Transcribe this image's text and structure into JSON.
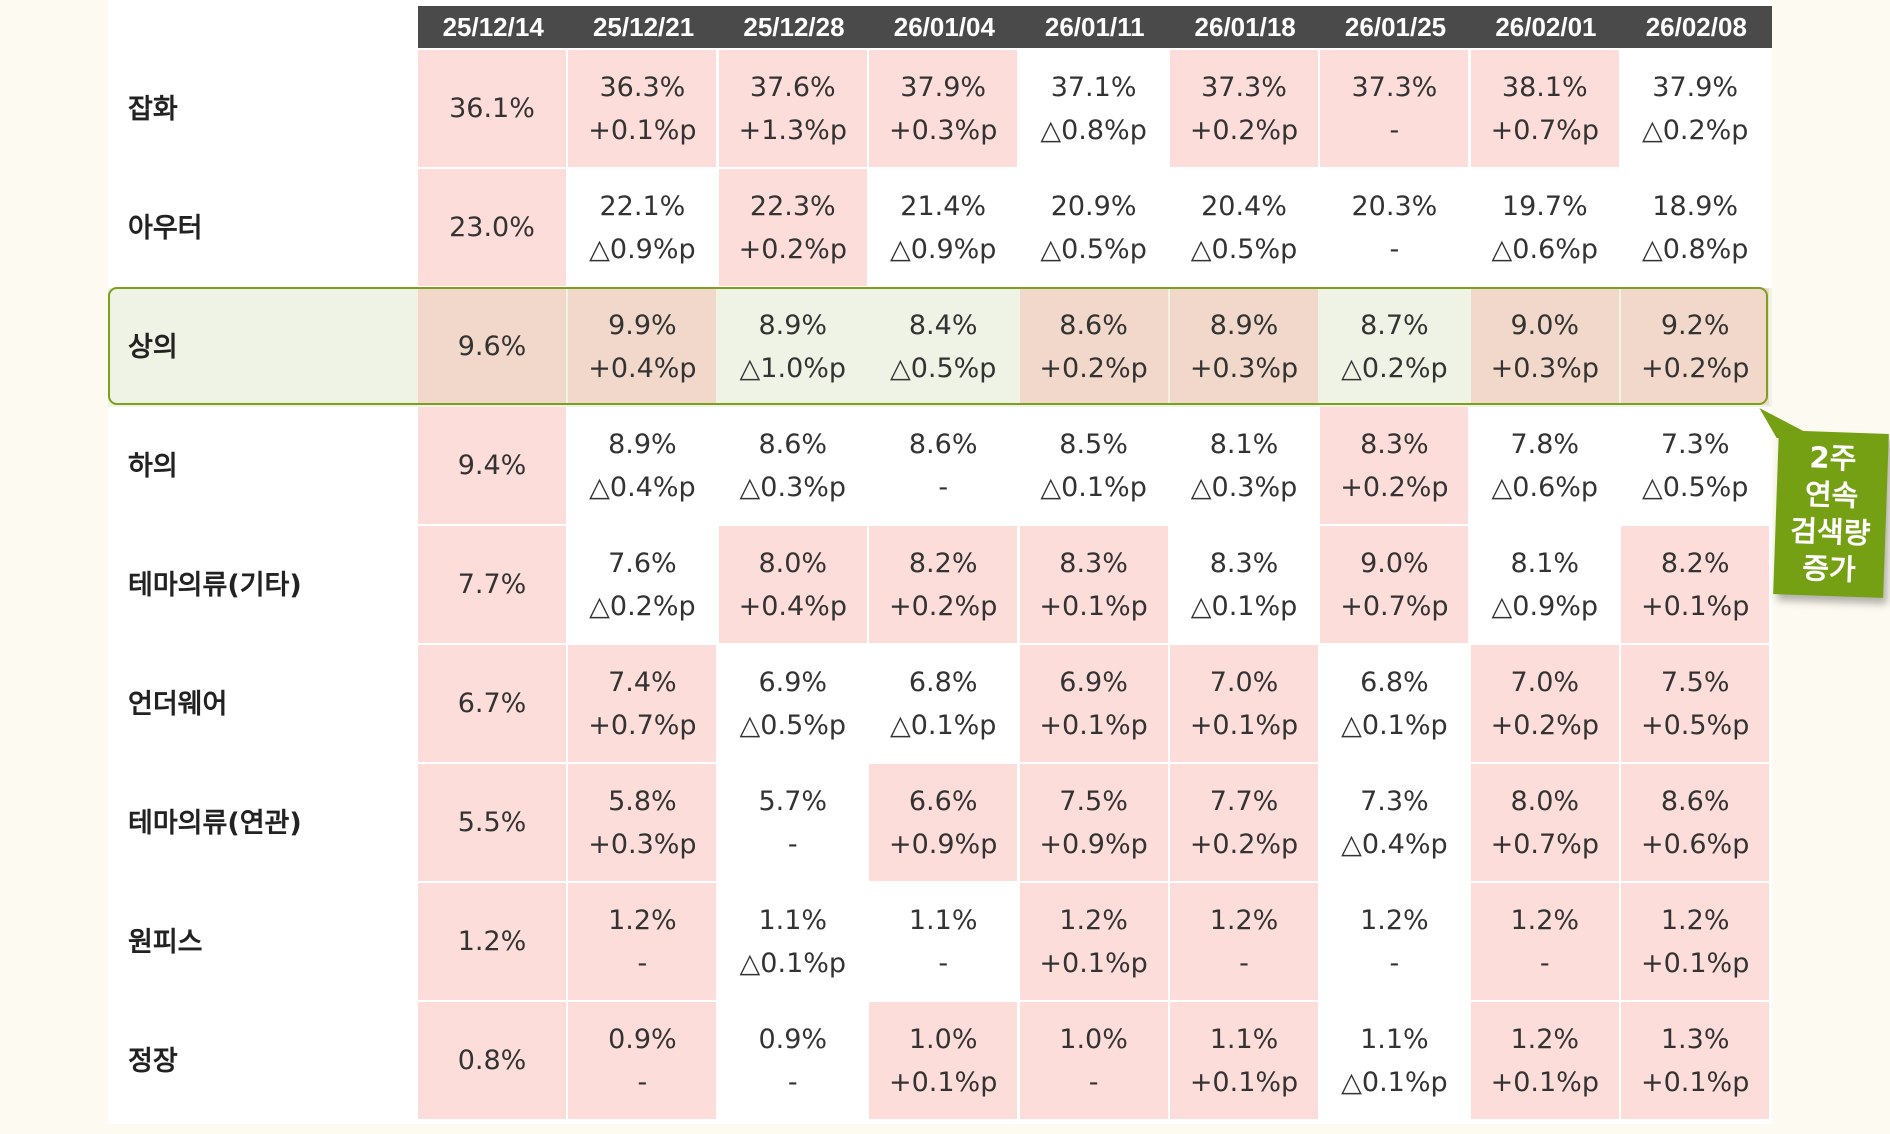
{
  "columns": [
    "25/12/14",
    "25/12/21",
    "25/12/28",
    "26/01/04",
    "26/01/11",
    "26/01/18",
    "26/01/25",
    "26/02/01",
    "26/02/08"
  ],
  "rows": [
    {
      "label": "잡화",
      "cells": [
        [
          "36.1%",
          null,
          1
        ],
        [
          "36.3%",
          "+0.1%p",
          1
        ],
        [
          "37.6%",
          "+1.3%p",
          1
        ],
        [
          "37.9%",
          "+0.3%p",
          1
        ],
        [
          "37.1%",
          "△0.8%p",
          0
        ],
        [
          "37.3%",
          "+0.2%p",
          1
        ],
        [
          "37.3%",
          "-",
          1
        ],
        [
          "38.1%",
          "+0.7%p",
          1
        ],
        [
          "37.9%",
          "△0.2%p",
          0
        ]
      ]
    },
    {
      "label": "아우터",
      "cells": [
        [
          "23.0%",
          null,
          1
        ],
        [
          "22.1%",
          "△0.9%p",
          0
        ],
        [
          "22.3%",
          "+0.2%p",
          1
        ],
        [
          "21.4%",
          "△0.9%p",
          0
        ],
        [
          "20.9%",
          "△0.5%p",
          0
        ],
        [
          "20.4%",
          "△0.5%p",
          0
        ],
        [
          "20.3%",
          "-",
          0
        ],
        [
          "19.7%",
          "△0.6%p",
          0
        ],
        [
          "18.9%",
          "△0.8%p",
          0
        ]
      ]
    },
    {
      "label": "상의",
      "highlight": true,
      "cells": [
        [
          "9.6%",
          null,
          1
        ],
        [
          "9.9%",
          "+0.4%p",
          1
        ],
        [
          "8.9%",
          "△1.0%p",
          0
        ],
        [
          "8.4%",
          "△0.5%p",
          0
        ],
        [
          "8.6%",
          "+0.2%p",
          1
        ],
        [
          "8.9%",
          "+0.3%p",
          1
        ],
        [
          "8.7%",
          "△0.2%p",
          0
        ],
        [
          "9.0%",
          "+0.3%p",
          1
        ],
        [
          "9.2%",
          "+0.2%p",
          1
        ]
      ]
    },
    {
      "label": "하의",
      "cells": [
        [
          "9.4%",
          null,
          1
        ],
        [
          "8.9%",
          "△0.4%p",
          0
        ],
        [
          "8.6%",
          "△0.3%p",
          0
        ],
        [
          "8.6%",
          "-",
          0
        ],
        [
          "8.5%",
          "△0.1%p",
          0
        ],
        [
          "8.1%",
          "△0.3%p",
          0
        ],
        [
          "8.3%",
          "+0.2%p",
          1
        ],
        [
          "7.8%",
          "△0.6%p",
          0
        ],
        [
          "7.3%",
          "△0.5%p",
          0
        ]
      ]
    },
    {
      "label": "테마의류(기타)",
      "cells": [
        [
          "7.7%",
          null,
          1
        ],
        [
          "7.6%",
          "△0.2%p",
          0
        ],
        [
          "8.0%",
          "+0.4%p",
          1
        ],
        [
          "8.2%",
          "+0.2%p",
          1
        ],
        [
          "8.3%",
          "+0.1%p",
          1
        ],
        [
          "8.3%",
          "△0.1%p",
          0
        ],
        [
          "9.0%",
          "+0.7%p",
          1
        ],
        [
          "8.1%",
          "△0.9%p",
          0
        ],
        [
          "8.2%",
          "+0.1%p",
          1
        ]
      ]
    },
    {
      "label": "언더웨어",
      "cells": [
        [
          "6.7%",
          null,
          1
        ],
        [
          "7.4%",
          "+0.7%p",
          1
        ],
        [
          "6.9%",
          "△0.5%p",
          0
        ],
        [
          "6.8%",
          "△0.1%p",
          0
        ],
        [
          "6.9%",
          "+0.1%p",
          1
        ],
        [
          "7.0%",
          "+0.1%p",
          1
        ],
        [
          "6.8%",
          "△0.1%p",
          0
        ],
        [
          "7.0%",
          "+0.2%p",
          1
        ],
        [
          "7.5%",
          "+0.5%p",
          1
        ]
      ]
    },
    {
      "label": "테마의류(연관)",
      "cells": [
        [
          "5.5%",
          null,
          1
        ],
        [
          "5.8%",
          "+0.3%p",
          1
        ],
        [
          "5.7%",
          "-",
          0
        ],
        [
          "6.6%",
          "+0.9%p",
          1
        ],
        [
          "7.5%",
          "+0.9%p",
          1
        ],
        [
          "7.7%",
          "+0.2%p",
          1
        ],
        [
          "7.3%",
          "△0.4%p",
          0
        ],
        [
          "8.0%",
          "+0.7%p",
          1
        ],
        [
          "8.6%",
          "+0.6%p",
          1
        ]
      ]
    },
    {
      "label": "원피스",
      "cells": [
        [
          "1.2%",
          null,
          1
        ],
        [
          "1.2%",
          "-",
          1
        ],
        [
          "1.1%",
          "△0.1%p",
          0
        ],
        [
          "1.1%",
          "-",
          0
        ],
        [
          "1.2%",
          "+0.1%p",
          1
        ],
        [
          "1.2%",
          "-",
          1
        ],
        [
          "1.2%",
          "-",
          0
        ],
        [
          "1.2%",
          "-",
          1
        ],
        [
          "1.2%",
          "+0.1%p",
          1
        ]
      ]
    },
    {
      "label": "정장",
      "cells": [
        [
          "0.8%",
          null,
          1
        ],
        [
          "0.9%",
          "-",
          1
        ],
        [
          "0.9%",
          "-",
          0
        ],
        [
          "1.0%",
          "+0.1%p",
          1
        ],
        [
          "1.0%",
          "-",
          1
        ],
        [
          "1.1%",
          "+0.1%p",
          1
        ],
        [
          "1.1%",
          "△0.1%p",
          0
        ],
        [
          "1.2%",
          "+0.1%p",
          1
        ],
        [
          "1.3%",
          "+0.1%p",
          1
        ]
      ]
    }
  ],
  "callout": {
    "line1": "2주 연속",
    "line2": "검색량 증가"
  },
  "colors": {
    "header": "#4a4a4a",
    "increase": "#fdddd9",
    "highlight_row": "#eff3e6",
    "highlight_border": "#7d9f1e",
    "callout": "#75a013"
  }
}
